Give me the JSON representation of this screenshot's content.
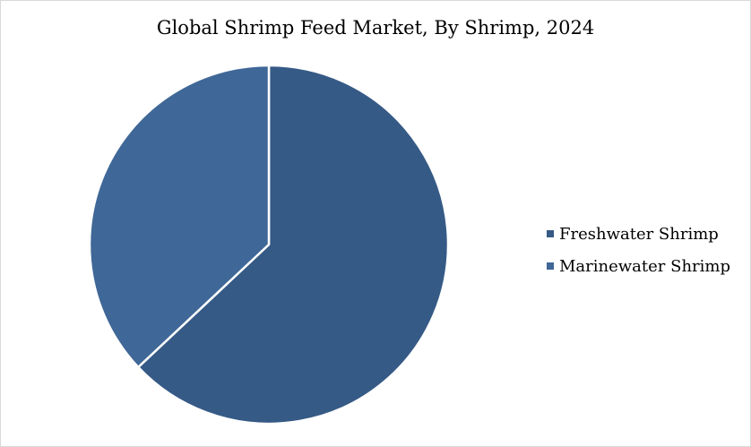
{
  "chart_data": {
    "type": "pie",
    "title": "Global Shrimp Feed Market, By Shrimp, 2024",
    "categories": [
      "Freshwater Shrimp",
      "Marinewater Shrimp"
    ],
    "values": [
      63,
      37
    ],
    "colors": [
      "#365a86",
      "#3f6797"
    ],
    "legend_position": "right"
  }
}
